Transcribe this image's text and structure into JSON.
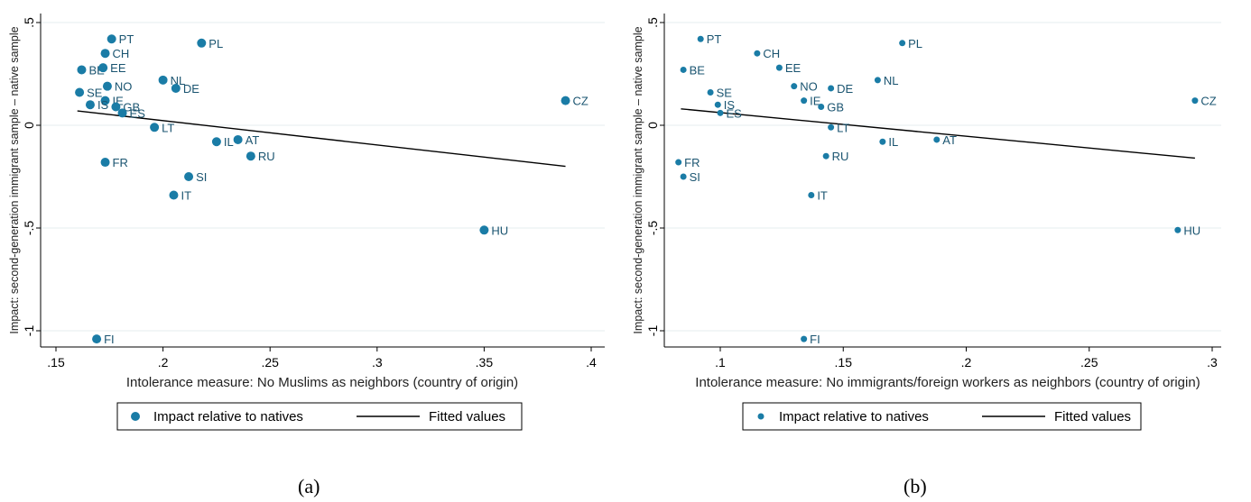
{
  "chart_data": [
    {
      "type": "scatter",
      "panel_label": "(a)",
      "xlabel": "Intolerance measure: No Muslims as neighbors (country of origin)",
      "ylabel": "Impact: second-generation immigrant sample – native sample",
      "xlim": [
        0.15,
        0.4
      ],
      "ylim": [
        -1.05,
        0.5
      ],
      "xticks": [
        0.15,
        0.2,
        0.25,
        0.3,
        0.35,
        0.4
      ],
      "xtick_labels": [
        ".15",
        ".2",
        ".25",
        ".3",
        ".35",
        ".4"
      ],
      "yticks": [
        0.5,
        0,
        -0.5,
        -1
      ],
      "ytick_labels": [
        ".5",
        "0",
        "-.5",
        "-1"
      ],
      "grid": "horizontal",
      "legend": {
        "position": "bottom",
        "entries": [
          "Impact relative to natives",
          "Fitted values"
        ]
      },
      "fit_line": {
        "x": [
          0.16,
          0.388
        ],
        "y": [
          0.07,
          -0.2
        ]
      },
      "series": [
        {
          "name": "Impact relative to natives",
          "color": "#1a7ca6",
          "points": [
            {
              "label": "PT",
              "x": 0.176,
              "y": 0.42
            },
            {
              "label": "PL",
              "x": 0.218,
              "y": 0.4
            },
            {
              "label": "CH",
              "x": 0.173,
              "y": 0.35
            },
            {
              "label": "BE",
              "x": 0.162,
              "y": 0.27
            },
            {
              "label": "EE",
              "x": 0.172,
              "y": 0.28
            },
            {
              "label": "NL",
              "x": 0.2,
              "y": 0.22
            },
            {
              "label": "NO",
              "x": 0.174,
              "y": 0.19
            },
            {
              "label": "DE",
              "x": 0.206,
              "y": 0.18
            },
            {
              "label": "SE",
              "x": 0.161,
              "y": 0.16
            },
            {
              "label": "IE",
              "x": 0.173,
              "y": 0.12
            },
            {
              "label": "IS",
              "x": 0.166,
              "y": 0.1
            },
            {
              "label": "GB",
              "x": 0.178,
              "y": 0.09
            },
            {
              "label": "ES",
              "x": 0.181,
              "y": 0.06
            },
            {
              "label": "CZ",
              "x": 0.388,
              "y": 0.12
            },
            {
              "label": "LT",
              "x": 0.196,
              "y": -0.01
            },
            {
              "label": "IL",
              "x": 0.225,
              "y": -0.08
            },
            {
              "label": "AT",
              "x": 0.235,
              "y": -0.07
            },
            {
              "label": "RU",
              "x": 0.241,
              "y": -0.15
            },
            {
              "label": "FR",
              "x": 0.173,
              "y": -0.18
            },
            {
              "label": "SI",
              "x": 0.212,
              "y": -0.25
            },
            {
              "label": "IT",
              "x": 0.205,
              "y": -0.34
            },
            {
              "label": "HU",
              "x": 0.35,
              "y": -0.51
            },
            {
              "label": "FI",
              "x": 0.169,
              "y": -1.04
            }
          ]
        }
      ]
    },
    {
      "type": "scatter",
      "panel_label": "(b)",
      "xlabel": "Intolerance measure: No immigrants/foreign workers as neighbors (country of origin)",
      "ylabel": "Impact: second-generation immigrant sample – native sample",
      "xlim": [
        0.08,
        0.3
      ],
      "ylim": [
        -1.05,
        0.5
      ],
      "xticks": [
        0.1,
        0.15,
        0.2,
        0.25,
        0.3
      ],
      "xtick_labels": [
        ".1",
        ".15",
        ".2",
        ".25",
        ".3"
      ],
      "yticks": [
        0.5,
        0,
        -0.5,
        -1
      ],
      "ytick_labels": [
        ".5",
        "0",
        "-.5",
        "-1"
      ],
      "grid": "horizontal",
      "legend": {
        "position": "bottom",
        "entries": [
          "Impact relative to natives",
          "Fitted values"
        ]
      },
      "fit_line": {
        "x": [
          0.084,
          0.293
        ],
        "y": [
          0.08,
          -0.16
        ]
      },
      "series": [
        {
          "name": "Impact relative to natives",
          "color": "#1a7ca6",
          "points": [
            {
              "label": "PT",
              "x": 0.092,
              "y": 0.42
            },
            {
              "label": "PL",
              "x": 0.174,
              "y": 0.4
            },
            {
              "label": "CH",
              "x": 0.115,
              "y": 0.35
            },
            {
              "label": "BE",
              "x": 0.085,
              "y": 0.27
            },
            {
              "label": "EE",
              "x": 0.124,
              "y": 0.28
            },
            {
              "label": "NL",
              "x": 0.164,
              "y": 0.22
            },
            {
              "label": "NO",
              "x": 0.13,
              "y": 0.19
            },
            {
              "label": "DE",
              "x": 0.145,
              "y": 0.18
            },
            {
              "label": "SE",
              "x": 0.096,
              "y": 0.16
            },
            {
              "label": "IE",
              "x": 0.134,
              "y": 0.12
            },
            {
              "label": "IS",
              "x": 0.099,
              "y": 0.1
            },
            {
              "label": "GB",
              "x": 0.141,
              "y": 0.09
            },
            {
              "label": "ES",
              "x": 0.1,
              "y": 0.06
            },
            {
              "label": "CZ",
              "x": 0.293,
              "y": 0.12
            },
            {
              "label": "LT",
              "x": 0.145,
              "y": -0.01
            },
            {
              "label": "IL",
              "x": 0.166,
              "y": -0.08
            },
            {
              "label": "AT",
              "x": 0.188,
              "y": -0.07
            },
            {
              "label": "RU",
              "x": 0.143,
              "y": -0.15
            },
            {
              "label": "FR",
              "x": 0.083,
              "y": -0.18
            },
            {
              "label": "SI",
              "x": 0.085,
              "y": -0.25
            },
            {
              "label": "IT",
              "x": 0.137,
              "y": -0.34
            },
            {
              "label": "HU",
              "x": 0.286,
              "y": -0.51
            },
            {
              "label": "FI",
              "x": 0.134,
              "y": -1.04
            }
          ]
        }
      ]
    }
  ]
}
